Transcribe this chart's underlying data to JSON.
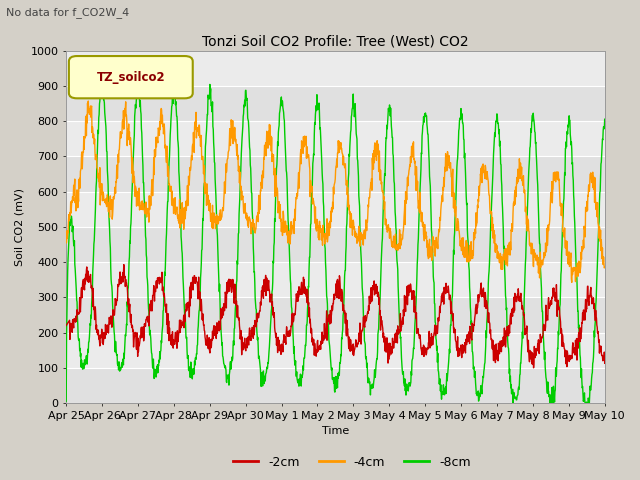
{
  "title": "Tonzi Soil CO2 Profile: Tree (West) CO2",
  "subtitle": "No data for f_CO2W_4",
  "ylabel": "Soil CO2 (mV)",
  "xlabel": "Time",
  "legend_label": "TZ_soilco2",
  "series_labels": [
    "-2cm",
    "-4cm",
    "-8cm"
  ],
  "series_colors": [
    "#cc0000",
    "#ff9900",
    "#00cc00"
  ],
  "ylim": [
    0,
    1000
  ],
  "tick_labels": [
    "Apr 25",
    "Apr 26",
    "Apr 27",
    "Apr 28",
    "Apr 29",
    "Apr 30",
    "May 1",
    "May 2",
    "May 3",
    "May 4",
    "May 5",
    "May 6",
    "May 7",
    "May 8",
    "May 9",
    "May 10"
  ],
  "fig_facecolor": "#d4d0c8",
  "plot_facecolor": "#e8e8e8",
  "band_colors": [
    "#e0e0e0",
    "#ebebeb"
  ],
  "grid_color": "#ffffff",
  "title_fontsize": 10,
  "axis_fontsize": 8,
  "tick_fontsize": 8
}
